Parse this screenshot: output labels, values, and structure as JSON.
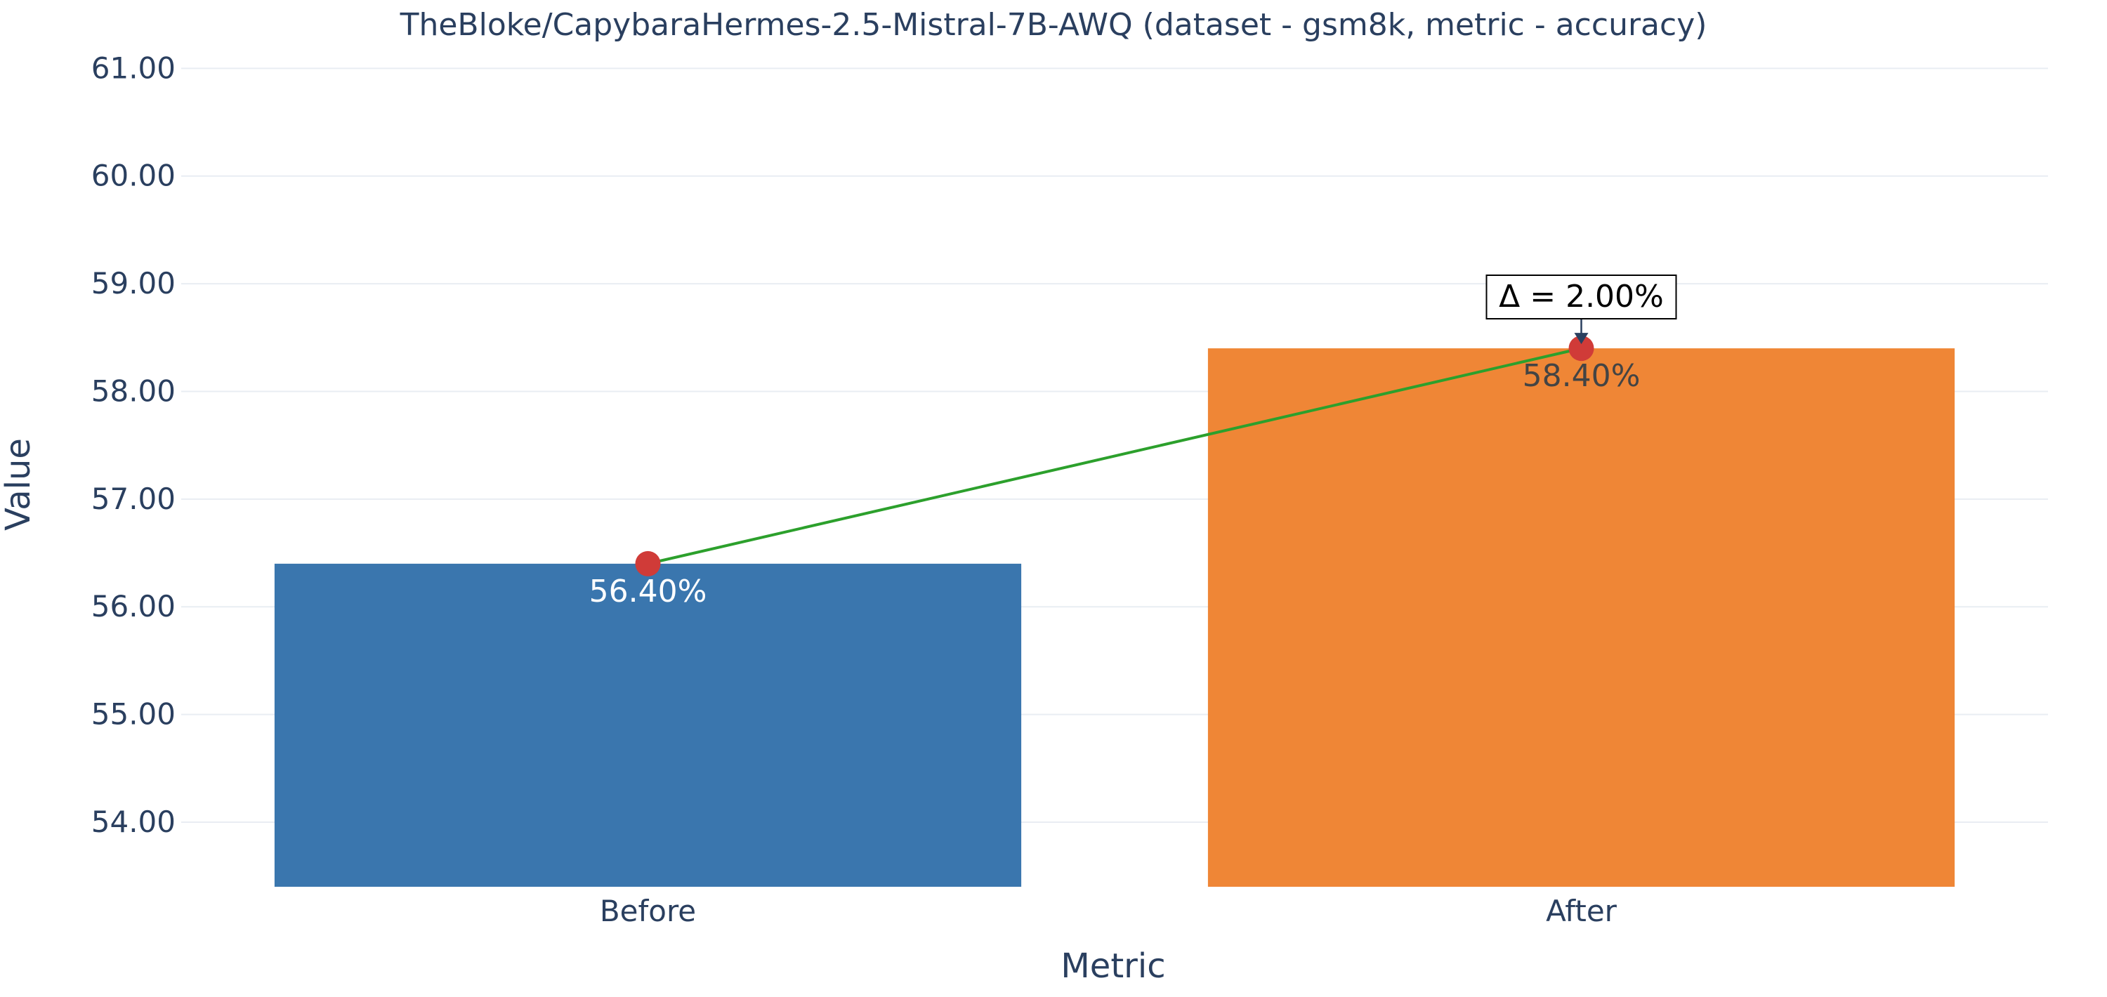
{
  "chart_data": {
    "type": "bar",
    "title": "TheBloke/CapybaraHermes-2.5-Mistral-7B-AWQ (dataset - gsm8k, metric - accuracy)",
    "xlabel": "Metric",
    "ylabel": "Value",
    "categories": [
      "Before",
      "After"
    ],
    "values": [
      56.4,
      58.4
    ],
    "value_labels": [
      "56.40%",
      "58.40%"
    ],
    "bar_colors": [
      "#3a76ae",
      "#ef8636"
    ],
    "ylim": [
      53.4,
      61.4
    ],
    "yticks": [
      54,
      55,
      56,
      57,
      58,
      59,
      60,
      61
    ],
    "ytick_labels": [
      "54.00",
      "55.00",
      "56.00",
      "57.00",
      "58.00",
      "59.00",
      "60.00",
      "61.00"
    ],
    "grid": true,
    "legend": "none",
    "trend_line": {
      "color": "#2ca02c",
      "marker_color": "#d03b38"
    },
    "annotation": {
      "text": "Δ = 2.00%",
      "attached_to": "After"
    }
  }
}
